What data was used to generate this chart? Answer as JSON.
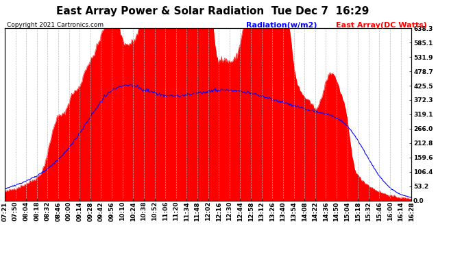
{
  "title": "East Array Power & Solar Radiation  Tue Dec 7  16:29",
  "copyright": "Copyright 2021 Cartronics.com",
  "legend_radiation": "Radiation(w/m2)",
  "legend_east_array": "East Array(DC Watts)",
  "legend_radiation_color": "blue",
  "legend_east_array_color": "red",
  "ylabel_right_values": [
    638.3,
    585.1,
    531.9,
    478.7,
    425.5,
    372.3,
    319.1,
    266.0,
    212.8,
    159.6,
    106.4,
    53.2,
    0.0
  ],
  "ymax": 638.3,
  "ymin": 0.0,
  "background_color": "#ffffff",
  "plot_bg_color": "#ffffff",
  "grid_color": "#bbbbbb",
  "fill_color": "#ff0000",
  "line_color": "#0000ff",
  "x_tick_labels": [
    "07:21",
    "07:50",
    "08:04",
    "08:18",
    "08:32",
    "08:46",
    "09:00",
    "09:14",
    "09:28",
    "09:42",
    "09:56",
    "10:10",
    "10:24",
    "10:38",
    "10:52",
    "11:06",
    "11:20",
    "11:34",
    "11:48",
    "12:02",
    "12:16",
    "12:30",
    "12:44",
    "12:58",
    "13:12",
    "13:26",
    "13:40",
    "13:54",
    "14:08",
    "14:22",
    "14:36",
    "14:50",
    "15:04",
    "15:18",
    "15:32",
    "15:46",
    "16:00",
    "16:14",
    "16:28"
  ],
  "title_fontsize": 11,
  "tick_fontsize": 6.5,
  "copyright_fontsize": 6.5,
  "legend_fontsize": 8
}
